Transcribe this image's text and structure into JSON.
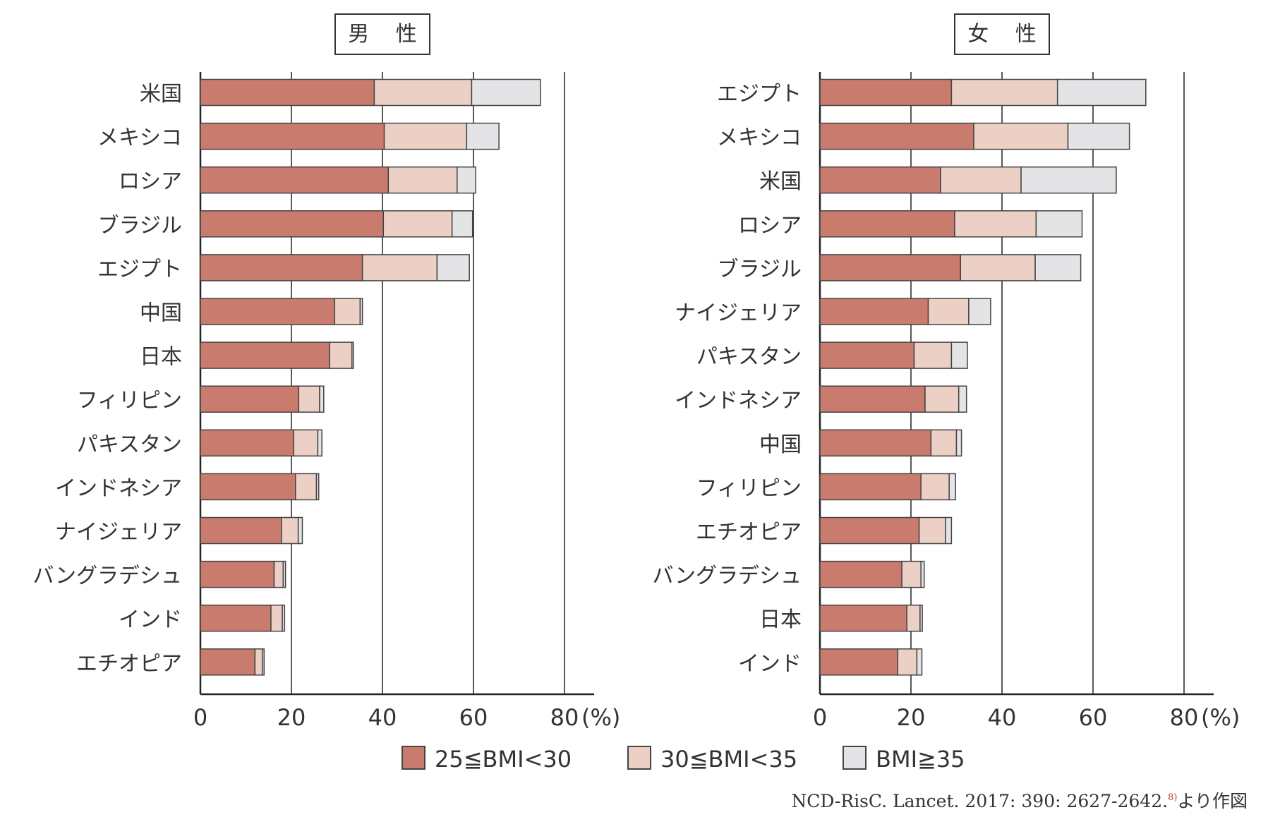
{
  "chart_data": [
    {
      "type": "bar",
      "orientation": "horizontal",
      "stacked": true,
      "title": "男 性",
      "categories": [
        "米国",
        "メキシコ",
        "ロシア",
        "ブラジル",
        "エジプト",
        "中国",
        "日本",
        "フィリピン",
        "パキスタン",
        "インドネシア",
        "ナイジェリア",
        "バングラデシュ",
        "インド",
        "エチオピア"
      ],
      "series": [
        {
          "name": "25≦BMI<30",
          "values": [
            38.2,
            40.4,
            41.3,
            40.2,
            35.6,
            29.5,
            28.4,
            21.6,
            20.5,
            20.9,
            17.8,
            16.2,
            15.5,
            12.0
          ]
        },
        {
          "name": "30≦BMI<35",
          "values": [
            21.4,
            18.1,
            15.1,
            15.1,
            16.4,
            5.6,
            4.9,
            4.6,
            5.3,
            4.6,
            3.7,
            2.0,
            2.5,
            1.6
          ]
        },
        {
          "name": "BMI≧35",
          "values": [
            15.1,
            7.1,
            4.1,
            4.5,
            7.1,
            0.5,
            0.3,
            0.9,
            0.9,
            0.5,
            0.9,
            0.5,
            0.5,
            0.4
          ]
        }
      ],
      "xlim": [
        0,
        80
      ],
      "xticks": [
        "0",
        "20",
        "40",
        "60",
        "80"
      ],
      "xunit": "(%)",
      "grid": true
    },
    {
      "type": "bar",
      "orientation": "horizontal",
      "stacked": true,
      "title": "女 性",
      "categories": [
        "エジプト",
        "メキシコ",
        "米国",
        "ロシア",
        "ブラジル",
        "ナイジェリア",
        "パキスタン",
        "インドネシア",
        "中国",
        "フィリピン",
        "エチオピア",
        "バングラデシュ",
        "日本",
        "インド"
      ],
      "series": [
        {
          "name": "25≦BMI<30",
          "values": [
            28.9,
            33.8,
            26.5,
            29.6,
            30.9,
            23.8,
            20.7,
            23.1,
            24.4,
            22.2,
            21.8,
            18.0,
            19.1,
            17.1
          ]
        },
        {
          "name": "30≦BMI<35",
          "values": [
            23.3,
            20.7,
            17.7,
            17.9,
            16.4,
            8.9,
            8.2,
            7.4,
            5.6,
            6.2,
            5.8,
            4.2,
            2.9,
            4.2
          ]
        },
        {
          "name": "BMI≧35",
          "values": [
            19.4,
            13.5,
            20.9,
            10.1,
            10.0,
            4.8,
            3.5,
            1.7,
            1.1,
            1.4,
            1.3,
            0.7,
            0.5,
            1.1
          ]
        }
      ],
      "xlim": [
        0,
        80
      ],
      "xticks": [
        "0",
        "20",
        "40",
        "60",
        "80"
      ],
      "xunit": "(%)",
      "grid": true
    }
  ],
  "legend": {
    "placement": "bottom",
    "items": [
      {
        "label": "25≦BMI<30",
        "color": "#c97b6e"
      },
      {
        "label": "30≦BMI<35",
        "color": "#ecd0c6"
      },
      {
        "label": "BMI≧35",
        "color": "#e4e4e6"
      }
    ]
  },
  "source": {
    "text": "NCD-RisC. Lancet. 2017: 390: 2627-2642.",
    "ref": "8)",
    "suffix": "より作図"
  }
}
